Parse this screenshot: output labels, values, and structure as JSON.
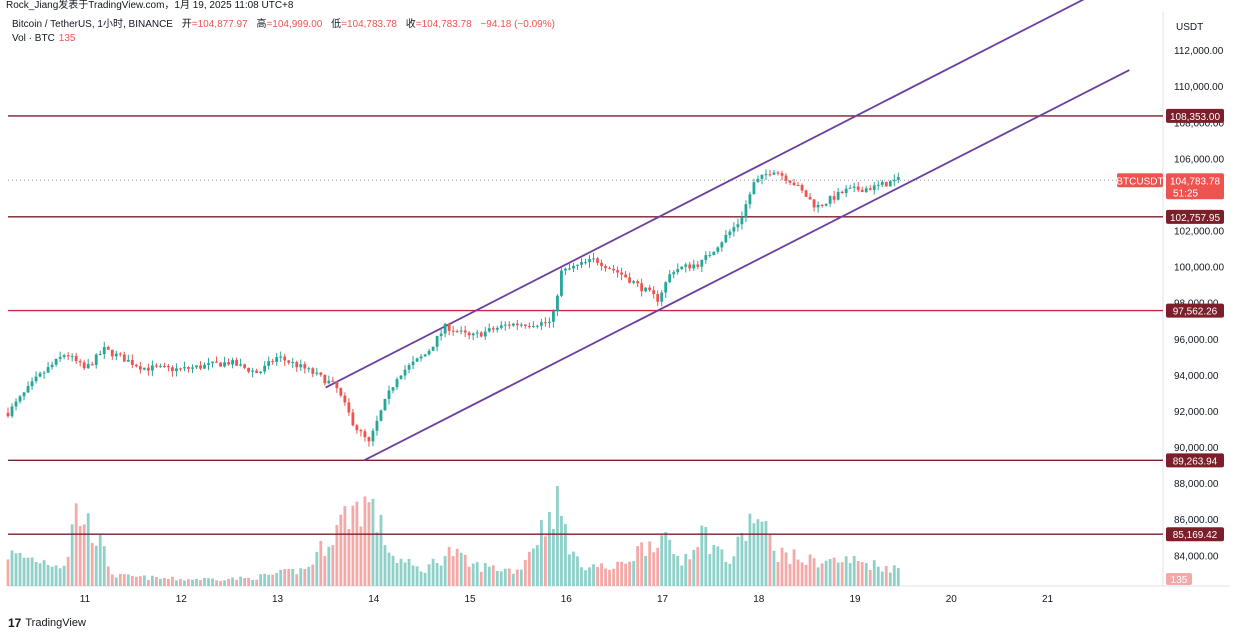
{
  "header": {
    "attribution": "Rock_Jiang发表于TradingView.com，1月 19, 2025 11:08 UTC+8"
  },
  "legend": {
    "symbol": "Bitcoin / TetherUS, 1小时, BINANCE",
    "open_label": "开",
    "open_value": "=104,877.97",
    "high_label": "高",
    "high_value": "=104,999.00",
    "low_label": "低",
    "low_value": "=104,783.78",
    "close_label": "收",
    "close_value": "=104,783.78",
    "change_value": "−94.18 (−0.09%)",
    "volume_label": "Vol · BTC",
    "volume_value": "135"
  },
  "footer": {
    "brand": "TradingView",
    "logo_glyph": "17"
  },
  "colors": {
    "up": "#26a69a",
    "down": "#ef5350",
    "up_volume": "#8fd1c9",
    "down_volume": "#f2a9a7",
    "level_line": "#7b1f2a",
    "level_tag": "#7b1f2a",
    "support_line": "#c62b3a",
    "channel": "#6a3fa0",
    "price_tag": "#ef5350"
  },
  "chart_data": {
    "type": "candlestick",
    "y_axis_title": "USDT",
    "ylim": [
      82300,
      114000
    ],
    "y_ticks": [
      "84,000.00",
      "86,000.00",
      "88,000.00",
      "90,000.00",
      "92,000.00",
      "94,000.00",
      "96,000.00",
      "98,000.00",
      "100,000.00",
      "102,000.00",
      "104,000.00",
      "106,000.00",
      "108,000.00",
      "110,000.00",
      "112,000.00"
    ],
    "y_tick_values": [
      84000,
      86000,
      88000,
      90000,
      92000,
      94000,
      96000,
      98000,
      100000,
      102000,
      104000,
      106000,
      108000,
      110000,
      112000
    ],
    "x_ticks": [
      "11",
      "12",
      "13",
      "14",
      "15",
      "16",
      "17",
      "18",
      "19",
      "20",
      "21"
    ],
    "x_tick_days": [
      11,
      12,
      13,
      14,
      15,
      16,
      17,
      18,
      19,
      20,
      21
    ],
    "x_range_days": [
      10.2,
      22.2
    ],
    "horizontal_levels": [
      {
        "label": "108,353.00",
        "value": 108353,
        "style": "level"
      },
      {
        "label": "102,757.95",
        "value": 102757.95,
        "style": "level"
      },
      {
        "label": "97,562.26",
        "value": 97562.26,
        "style": "support"
      },
      {
        "label": "89,263.94",
        "value": 89263.94,
        "style": "level"
      },
      {
        "label": "85,169.42",
        "value": 85169.42,
        "style": "level"
      }
    ],
    "last_price": {
      "symbol": "BTCUSDT",
      "label": "104,783.78",
      "value": 104783.78,
      "countdown": "51:25"
    },
    "volume_tag": "135",
    "channel_lines": [
      {
        "x": [
          13.5,
          18.15
        ],
        "y": [
          93300,
          106000
        ],
        "extend_to_day": 22.0
      },
      {
        "x": [
          13.9,
          16.95
        ],
        "y": [
          89263.94,
          97562.26
        ],
        "extend_to_day": 21.85
      }
    ],
    "price_anchors": [
      {
        "day": 10.2,
        "price": 91900
      },
      {
        "day": 10.5,
        "price": 93800
      },
      {
        "day": 10.8,
        "price": 95200
      },
      {
        "day": 11.0,
        "price": 94300
      },
      {
        "day": 11.2,
        "price": 95400
      },
      {
        "day": 11.6,
        "price": 94400
      },
      {
        "day": 12.0,
        "price": 94300
      },
      {
        "day": 12.5,
        "price": 94700
      },
      {
        "day": 12.8,
        "price": 94100
      },
      {
        "day": 13.0,
        "price": 95000
      },
      {
        "day": 13.3,
        "price": 94300
      },
      {
        "day": 13.6,
        "price": 93400
      },
      {
        "day": 13.8,
        "price": 91200
      },
      {
        "day": 13.95,
        "price": 90200
      },
      {
        "day": 14.1,
        "price": 92300
      },
      {
        "day": 14.25,
        "price": 94000
      },
      {
        "day": 14.55,
        "price": 95200
      },
      {
        "day": 14.75,
        "price": 96700
      },
      {
        "day": 15.0,
        "price": 96100
      },
      {
        "day": 15.4,
        "price": 96800
      },
      {
        "day": 15.85,
        "price": 96900
      },
      {
        "day": 15.95,
        "price": 99700
      },
      {
        "day": 16.3,
        "price": 100400
      },
      {
        "day": 16.6,
        "price": 99500
      },
      {
        "day": 16.95,
        "price": 98200
      },
      {
        "day": 17.1,
        "price": 99800
      },
      {
        "day": 17.4,
        "price": 100200
      },
      {
        "day": 17.8,
        "price": 102500
      },
      {
        "day": 17.95,
        "price": 104600
      },
      {
        "day": 18.15,
        "price": 105400
      },
      {
        "day": 18.35,
        "price": 104700
      },
      {
        "day": 18.6,
        "price": 103300
      },
      {
        "day": 18.9,
        "price": 104200
      },
      {
        "day": 19.2,
        "price": 104400
      },
      {
        "day": 19.45,
        "price": 104800
      }
    ],
    "volume_ylim": [
      0,
      1000
    ],
    "volume_anchors": [
      {
        "day": 10.2,
        "vol": 380
      },
      {
        "day": 10.8,
        "vol": 250
      },
      {
        "day": 10.9,
        "vol": 900
      },
      {
        "day": 11.1,
        "vol": 650
      },
      {
        "day": 11.3,
        "vol": 120
      },
      {
        "day": 12.0,
        "vol": 80
      },
      {
        "day": 12.7,
        "vol": 90
      },
      {
        "day": 13.3,
        "vol": 200
      },
      {
        "day": 13.75,
        "vol": 900
      },
      {
        "day": 13.95,
        "vol": 1000
      },
      {
        "day": 14.2,
        "vol": 350
      },
      {
        "day": 14.5,
        "vol": 180
      },
      {
        "day": 14.8,
        "vol": 420
      },
      {
        "day": 15.0,
        "vol": 250
      },
      {
        "day": 15.5,
        "vol": 180
      },
      {
        "day": 15.9,
        "vol": 1000
      },
      {
        "day": 16.1,
        "vol": 280
      },
      {
        "day": 16.5,
        "vol": 200
      },
      {
        "day": 16.95,
        "vol": 600
      },
      {
        "day": 17.2,
        "vol": 300
      },
      {
        "day": 17.4,
        "vol": 650
      },
      {
        "day": 17.7,
        "vol": 280
      },
      {
        "day": 17.95,
        "vol": 850
      },
      {
        "day": 18.2,
        "vol": 400
      },
      {
        "day": 18.5,
        "vol": 300
      },
      {
        "day": 19.0,
        "vol": 300
      },
      {
        "day": 19.45,
        "vol": 200
      }
    ]
  }
}
